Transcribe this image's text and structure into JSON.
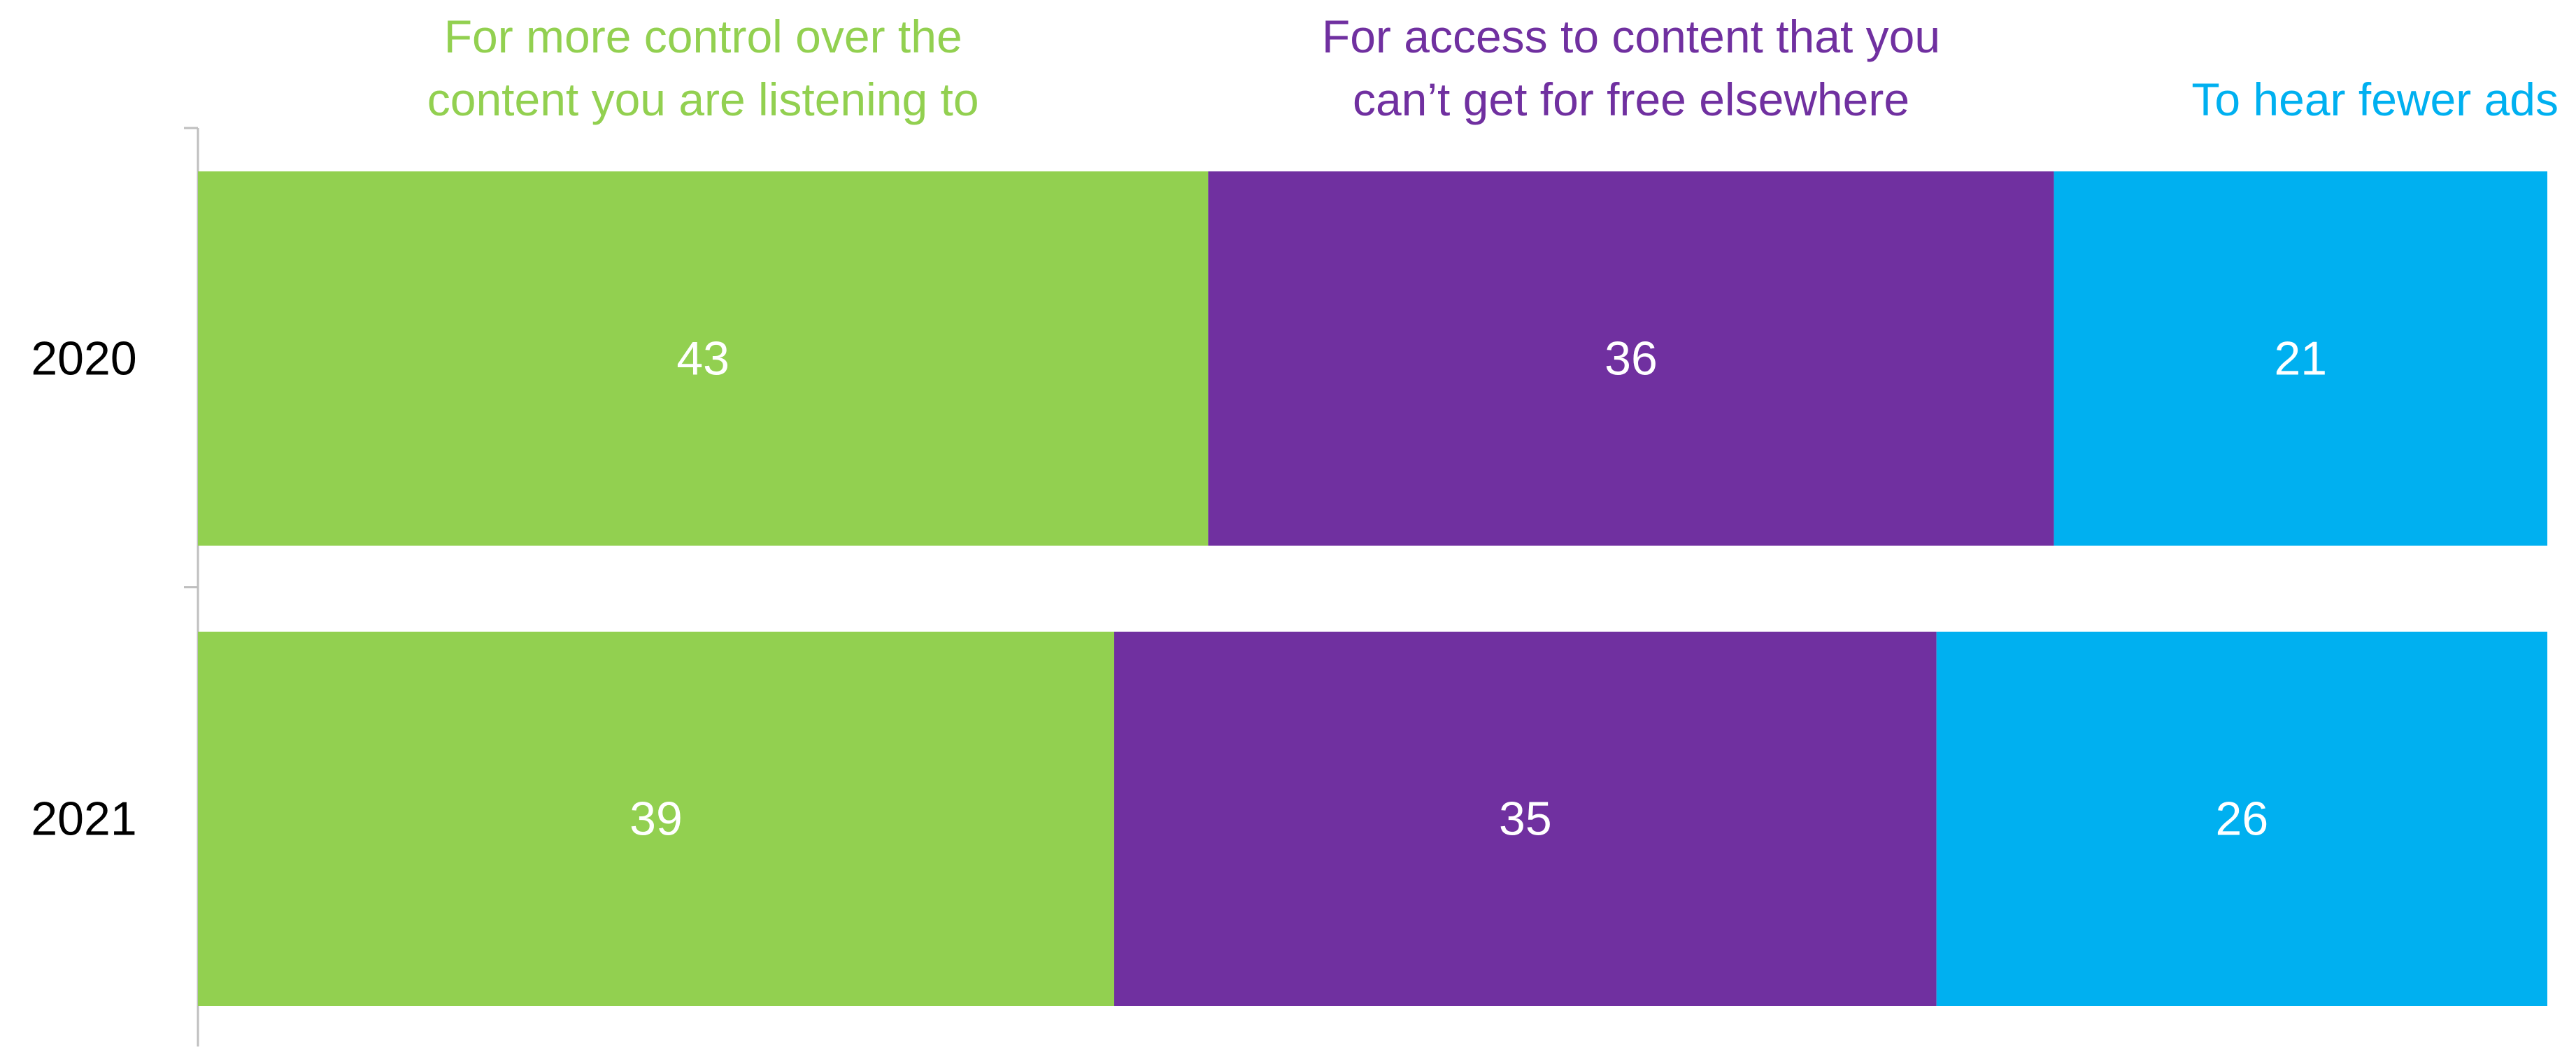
{
  "chart_data": {
    "type": "bar",
    "orientation": "horizontal",
    "stacked": true,
    "categories": [
      "2020",
      "2021"
    ],
    "series": [
      {
        "name": "For more control over the content you are listening to",
        "name_lines": [
          "For more control over the",
          "content you are listening to"
        ],
        "color": "#92d050",
        "values": [
          43,
          39
        ]
      },
      {
        "name": "For access to content that you can’t get for free elsewhere",
        "name_lines": [
          "For access to content that you",
          "can’t get for free elsewhere"
        ],
        "color": "#7030a0",
        "values": [
          36,
          35
        ]
      },
      {
        "name": "To hear fewer ads",
        "name_lines": [
          "To hear fewer ads"
        ],
        "color": "#00b0f0",
        "values": [
          21,
          26
        ]
      }
    ],
    "xlim": [
      0,
      100
    ],
    "legend_position": "top",
    "grid": false,
    "colors": {
      "axis": "#bfbfbf",
      "category_label": "#000000",
      "data_label": "#ffffff"
    }
  }
}
